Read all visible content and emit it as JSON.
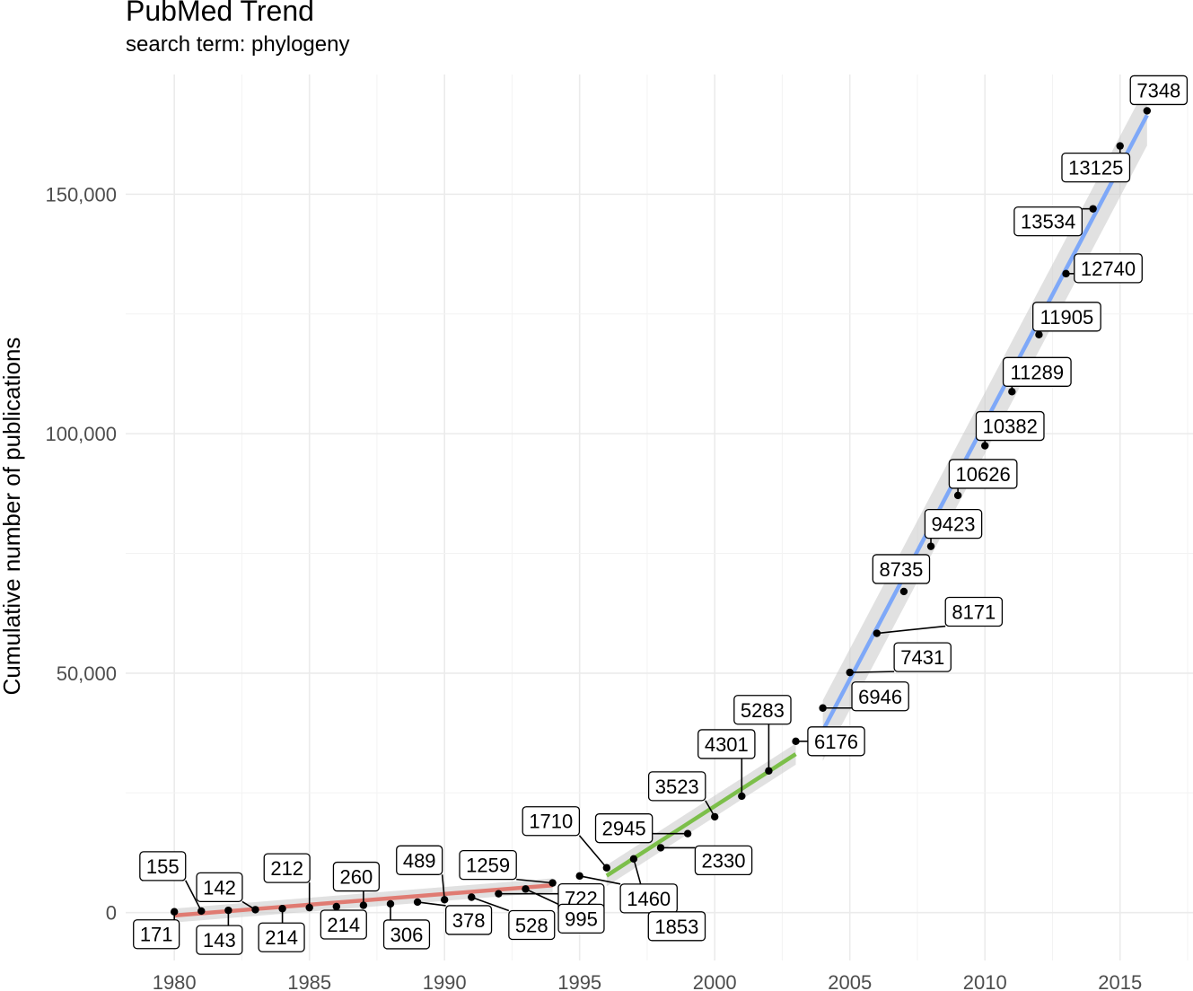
{
  "title": "PubMed Trend",
  "subtitle": "search term: phylogeny",
  "chart_data": {
    "type": "line",
    "title": "PubMed Trend",
    "subtitle": "search term: phylogeny",
    "xlabel": "",
    "ylabel": "Cumulative number of publications",
    "xlim": [
      1978.2,
      2017.7
    ],
    "ylim": [
      -10000,
      175000
    ],
    "x_ticks": [
      1980,
      1985,
      1990,
      1995,
      2000,
      2005,
      2010,
      2015
    ],
    "y_ticks": [
      0,
      50000,
      100000,
      150000
    ],
    "y_tick_labels": [
      "0",
      "50,000",
      "100,000",
      "150,000"
    ],
    "grid": true,
    "points": [
      {
        "year": 1980,
        "cumulative": 171,
        "label": "171"
      },
      {
        "year": 1981,
        "cumulative": 326,
        "label": "155"
      },
      {
        "year": 1982,
        "cumulative": 469,
        "label": "143"
      },
      {
        "year": 1983,
        "cumulative": 611,
        "label": "142"
      },
      {
        "year": 1984,
        "cumulative": 825,
        "label": "214"
      },
      {
        "year": 1985,
        "cumulative": 1037,
        "label": "212"
      },
      {
        "year": 1986,
        "cumulative": 1251,
        "label": "214"
      },
      {
        "year": 1987,
        "cumulative": 1511,
        "label": "260"
      },
      {
        "year": 1988,
        "cumulative": 1817,
        "label": "306"
      },
      {
        "year": 1989,
        "cumulative": 2195,
        "label": "378"
      },
      {
        "year": 1990,
        "cumulative": 2684,
        "label": "489"
      },
      {
        "year": 1991,
        "cumulative": 3212,
        "label": "528"
      },
      {
        "year": 1992,
        "cumulative": 3934,
        "label": "722"
      },
      {
        "year": 1993,
        "cumulative": 4929,
        "label": "995"
      },
      {
        "year": 1994,
        "cumulative": 6188,
        "label": "1259"
      },
      {
        "year": 1995,
        "cumulative": 7648,
        "label": "1460"
      },
      {
        "year": 1996,
        "cumulative": 9358,
        "label": "1710"
      },
      {
        "year": 1997,
        "cumulative": 11211,
        "label": "1853"
      },
      {
        "year": 1998,
        "cumulative": 13541,
        "label": "2330"
      },
      {
        "year": 1999,
        "cumulative": 16486,
        "label": "2945"
      },
      {
        "year": 2000,
        "cumulative": 20009,
        "label": "3523"
      },
      {
        "year": 2001,
        "cumulative": 24310,
        "label": "4301"
      },
      {
        "year": 2002,
        "cumulative": 29593,
        "label": "5283"
      },
      {
        "year": 2003,
        "cumulative": 35769,
        "label": "6176"
      },
      {
        "year": 2004,
        "cumulative": 42715,
        "label": "6946"
      },
      {
        "year": 2005,
        "cumulative": 50146,
        "label": "7431"
      },
      {
        "year": 2006,
        "cumulative": 58317,
        "label": "8171"
      },
      {
        "year": 2007,
        "cumulative": 67052,
        "label": "8735"
      },
      {
        "year": 2008,
        "cumulative": 76475,
        "label": "9423"
      },
      {
        "year": 2009,
        "cumulative": 87101,
        "label": "10626"
      },
      {
        "year": 2010,
        "cumulative": 97483,
        "label": "10382"
      },
      {
        "year": 2011,
        "cumulative": 108772,
        "label": "11289"
      },
      {
        "year": 2012,
        "cumulative": 120677,
        "label": "11905"
      },
      {
        "year": 2013,
        "cumulative": 133417,
        "label": "12740"
      },
      {
        "year": 2014,
        "cumulative": 146951,
        "label": "13534"
      },
      {
        "year": 2015,
        "cumulative": 160076,
        "label": "13125"
      },
      {
        "year": 2016,
        "cumulative": 167424,
        "label": "7348"
      }
    ],
    "trend_lines": [
      {
        "x_from": 1980,
        "x_to": 1994,
        "y_from": -600,
        "y_to": 5700,
        "color": "#e07b72"
      },
      {
        "x_from": 1996,
        "x_to": 2003,
        "y_from": 7700,
        "y_to": 33100,
        "color": "#7cbf4a"
      },
      {
        "x_from": 2004,
        "x_to": 2016,
        "y_from": 38000,
        "y_to": 166500,
        "color": "#7ea8f8"
      }
    ],
    "band_color": "#c8c8c8"
  }
}
